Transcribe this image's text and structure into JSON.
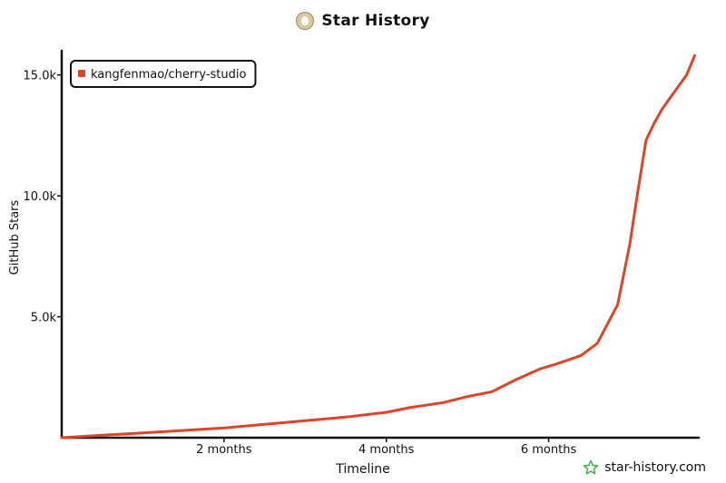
{
  "header": {
    "title": "Star History",
    "logo_icon": "star-history-logo-icon"
  },
  "watermark": {
    "text": "star-history.com",
    "icon": "star-outline-icon",
    "icon_color": "#3cb44b"
  },
  "chart_data": {
    "type": "line",
    "title": "Star History",
    "xlabel": "Timeline",
    "ylabel": "GitHub Stars",
    "x_unit": "months",
    "xlim": [
      0,
      7.85
    ],
    "ylim": [
      0,
      16000
    ],
    "x_ticks": [
      {
        "value": 2,
        "label": "2 months"
      },
      {
        "value": 4,
        "label": "4 months"
      },
      {
        "value": 6,
        "label": "6 months"
      }
    ],
    "y_ticks": [
      {
        "value": 5000,
        "label": "5.0k"
      },
      {
        "value": 10000,
        "label": "10.0k"
      },
      {
        "value": 15000,
        "label": "15.0k"
      }
    ],
    "grid": false,
    "legend_position": "top-left",
    "series": [
      {
        "name": "kangfenmao/cherry-studio",
        "color": "#dd4528",
        "x": [
          0,
          0.5,
          1.0,
          1.5,
          2.0,
          2.5,
          3.0,
          3.5,
          4.0,
          4.3,
          4.7,
          5.0,
          5.3,
          5.6,
          5.9,
          6.1,
          6.4,
          6.6,
          6.85,
          7.0,
          7.1,
          7.2,
          7.3,
          7.4,
          7.55,
          7.7,
          7.8
        ],
        "y": [
          0,
          100,
          200,
          300,
          400,
          550,
          700,
          850,
          1050,
          1250,
          1450,
          1700,
          1900,
          2400,
          2850,
          3050,
          3400,
          3900,
          5500,
          8000,
          10200,
          12300,
          13000,
          13600,
          14300,
          15000,
          15800
        ]
      }
    ]
  }
}
